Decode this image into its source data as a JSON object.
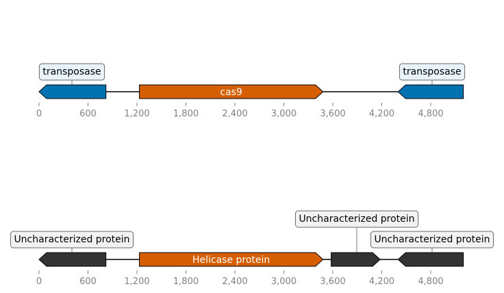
{
  "colors": {
    "transposase": "#0072b2",
    "cas9": "#d55e00",
    "helicase": "#d55e00",
    "uncharacterized": "#333333",
    "axis": "#808080",
    "callout_blue_fill": "#e8f3fb",
    "callout_gray_fill": "#f2f2f2"
  },
  "tracks": [
    {
      "id": "track-1",
      "ticks": [
        "0",
        "600",
        "1,200",
        "1,800",
        "2,400",
        "3,000",
        "3,600",
        "4,200",
        "4,800"
      ],
      "features": [
        {
          "id": "transposase-left",
          "start": 0,
          "end": 820,
          "strand": -1,
          "color_key": "transposase",
          "label": "",
          "callout": "transposase"
        },
        {
          "id": "cas9",
          "start": 1230,
          "end": 3480,
          "strand": 1,
          "color_key": "cas9",
          "label": "cas9",
          "callout": ""
        },
        {
          "id": "transposase-right",
          "start": 4400,
          "end": 5200,
          "strand": -1,
          "color_key": "transposase",
          "label": "",
          "callout": "transposase"
        }
      ]
    },
    {
      "id": "track-2",
      "ticks": [
        "0",
        "600",
        "1,200",
        "1,800",
        "2,400",
        "3,000",
        "3,600",
        "4,200",
        "4,800"
      ],
      "features": [
        {
          "id": "uncharacterized-1",
          "start": 0,
          "end": 820,
          "strand": -1,
          "color_key": "uncharacterized",
          "label": "",
          "callout": "Uncharacterized protein"
        },
        {
          "id": "helicase",
          "start": 1230,
          "end": 3480,
          "strand": 1,
          "color_key": "helicase",
          "label": "Helicase protein",
          "callout": ""
        },
        {
          "id": "uncharacterized-2",
          "start": 3580,
          "end": 4180,
          "strand": 1,
          "color_key": "uncharacterized",
          "label": "",
          "callout": "Uncharacterized protein"
        },
        {
          "id": "uncharacterized-3",
          "start": 4400,
          "end": 5200,
          "strand": -1,
          "color_key": "uncharacterized",
          "label": "",
          "callout": "Uncharacterized protein"
        }
      ]
    }
  ]
}
